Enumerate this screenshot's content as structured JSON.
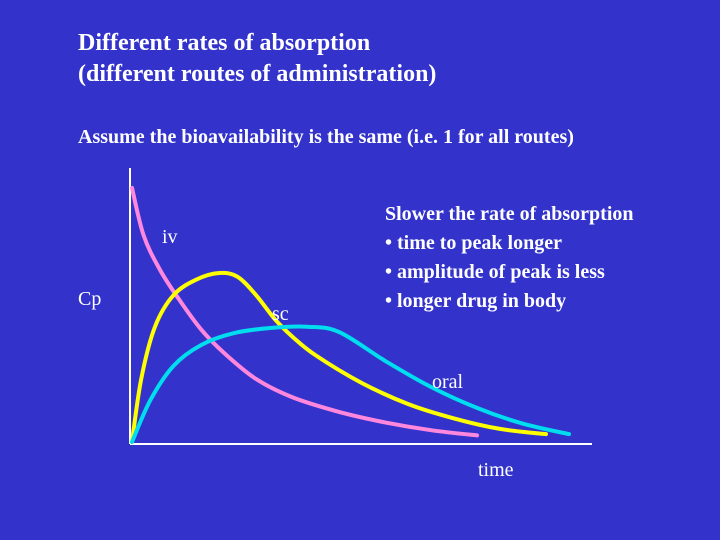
{
  "title": {
    "line1": "Different rates of absorption",
    "line2": "(different routes of administration)"
  },
  "subtitle": "Assume the bioavailability is the same (i.e. 1 for all routes)",
  "bullets": {
    "heading": "Slower the rate of absorption",
    "items": [
      "• time to peak longer",
      "• amplitude of peak is less",
      "• longer drug in body"
    ]
  },
  "chart_data": {
    "type": "line",
    "title": "Different rates of absorption (different routes of administration)",
    "xlabel": "time",
    "ylabel": "Cp",
    "xlim": [
      0,
      10
    ],
    "ylim": [
      0,
      10
    ],
    "grid": false,
    "series": [
      {
        "name": "iv",
        "color": "#ff88dd",
        "x": [
          0,
          0.25,
          0.6,
          1.0,
          1.5,
          2.0,
          2.7,
          3.5,
          4.5,
          5.5,
          6.5,
          7.5
        ],
        "y": [
          9.7,
          7.9,
          6.6,
          5.5,
          4.3,
          3.4,
          2.4,
          1.7,
          1.15,
          0.75,
          0.45,
          0.25
        ]
      },
      {
        "name": "sc",
        "color": "#ffff00",
        "x": [
          0,
          0.2,
          0.5,
          0.9,
          1.4,
          1.9,
          2.3,
          2.7,
          3.1,
          3.5,
          4.0,
          5.0,
          6.0,
          7.0,
          8.0,
          9.0
        ],
        "y": [
          0,
          2.4,
          4.4,
          5.6,
          6.2,
          6.45,
          6.3,
          5.6,
          4.7,
          4.0,
          3.3,
          2.25,
          1.45,
          0.9,
          0.5,
          0.3
        ]
      },
      {
        "name": "oral",
        "color": "#00ddee",
        "x": [
          0,
          0.4,
          0.9,
          1.5,
          2.2,
          3.0,
          3.8,
          4.5,
          5.5,
          6.5,
          7.5,
          8.5,
          9.5
        ],
        "y": [
          0,
          1.6,
          2.9,
          3.7,
          4.15,
          4.35,
          4.4,
          4.2,
          3.1,
          2.1,
          1.3,
          0.7,
          0.3
        ]
      }
    ],
    "annotations": [
      "iv",
      "sc",
      "oral"
    ]
  },
  "colors": {
    "background": "#3333cc",
    "text": "#ffffff",
    "axis": "#ffffff"
  }
}
